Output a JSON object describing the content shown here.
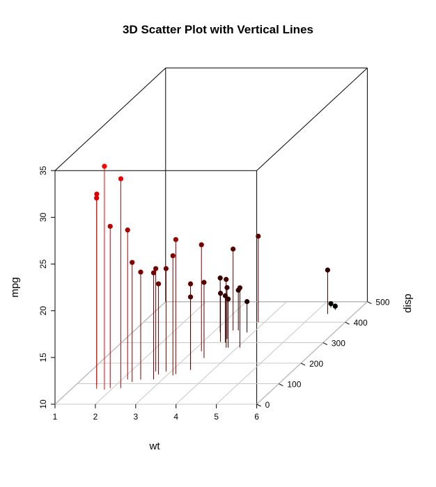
{
  "chart_data": {
    "type": "scatter3d",
    "title": "3D Scatter Plot with Vertical Lines",
    "xlabel": "wt",
    "ylabel": "disp",
    "zlabel": "mpg",
    "x_ticks": [
      "1",
      "2",
      "3",
      "4",
      "5",
      "6"
    ],
    "y_ticks": [
      "0",
      "100",
      "200",
      "300",
      "400",
      "500"
    ],
    "z_ticks": [
      "10",
      "15",
      "20",
      "25",
      "30",
      "35"
    ],
    "xlim": [
      1,
      6
    ],
    "ylim": [
      0,
      500
    ],
    "zlim": [
      10,
      35
    ],
    "color_low_mpg": "#000000",
    "color_high_mpg": "#ff0000",
    "points": [
      {
        "wt": 2.62,
        "disp": 160,
        "mpg": 21.0
      },
      {
        "wt": 2.875,
        "disp": 160,
        "mpg": 21.0
      },
      {
        "wt": 2.32,
        "disp": 108,
        "mpg": 22.8
      },
      {
        "wt": 3.215,
        "disp": 258,
        "mpg": 21.4
      },
      {
        "wt": 3.44,
        "disp": 360,
        "mpg": 18.7
      },
      {
        "wt": 3.46,
        "disp": 225,
        "mpg": 18.1
      },
      {
        "wt": 3.57,
        "disp": 360,
        "mpg": 14.3
      },
      {
        "wt": 3.19,
        "disp": 146.7,
        "mpg": 24.4
      },
      {
        "wt": 3.15,
        "disp": 140.8,
        "mpg": 22.8
      },
      {
        "wt": 3.44,
        "disp": 167.6,
        "mpg": 19.2
      },
      {
        "wt": 3.44,
        "disp": 167.6,
        "mpg": 17.8
      },
      {
        "wt": 4.07,
        "disp": 275.8,
        "mpg": 16.4
      },
      {
        "wt": 3.73,
        "disp": 275.8,
        "mpg": 17.3
      },
      {
        "wt": 3.78,
        "disp": 275.8,
        "mpg": 15.2
      },
      {
        "wt": 5.25,
        "disp": 472,
        "mpg": 10.4
      },
      {
        "wt": 5.424,
        "disp": 460,
        "mpg": 10.4
      },
      {
        "wt": 5.345,
        "disp": 440,
        "mpg": 14.7
      },
      {
        "wt": 2.2,
        "disp": 78.7,
        "mpg": 32.4
      },
      {
        "wt": 1.615,
        "disp": 75.7,
        "mpg": 30.4
      },
      {
        "wt": 1.835,
        "disp": 71.1,
        "mpg": 33.9
      },
      {
        "wt": 2.465,
        "disp": 120.1,
        "mpg": 21.5
      },
      {
        "wt": 3.52,
        "disp": 318,
        "mpg": 15.5
      },
      {
        "wt": 3.435,
        "disp": 304,
        "mpg": 15.2
      },
      {
        "wt": 3.84,
        "disp": 350,
        "mpg": 13.3
      },
      {
        "wt": 3.845,
        "disp": 400,
        "mpg": 19.2
      },
      {
        "wt": 1.935,
        "disp": 79,
        "mpg": 27.3
      },
      {
        "wt": 2.14,
        "disp": 120.3,
        "mpg": 26.0
      },
      {
        "wt": 1.513,
        "disp": 95.1,
        "mpg": 30.4
      },
      {
        "wt": 3.17,
        "disp": 351,
        "mpg": 15.8
      },
      {
        "wt": 2.77,
        "disp": 145,
        "mpg": 19.7
      },
      {
        "wt": 3.57,
        "disp": 301,
        "mpg": 15.0
      },
      {
        "wt": 2.78,
        "disp": 121,
        "mpg": 21.4
      }
    ]
  }
}
